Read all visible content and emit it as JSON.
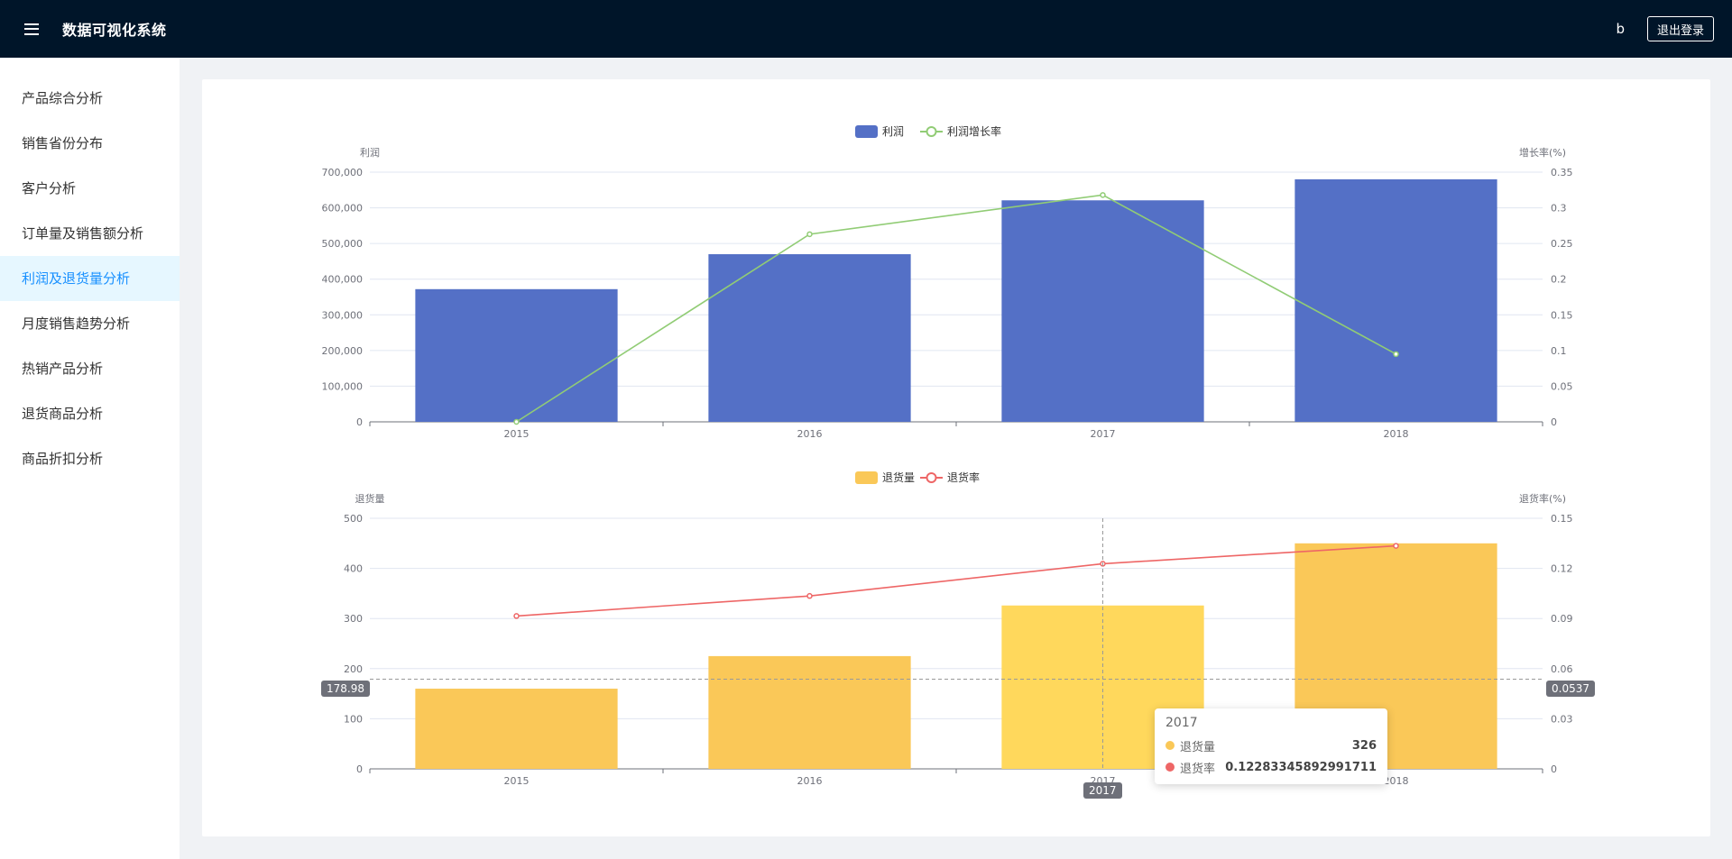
{
  "header": {
    "title": "数据可视化系统",
    "user_name": "b",
    "logout_label": "退出登录"
  },
  "sidebar": {
    "items": [
      {
        "label": "产品综合分析",
        "active": false
      },
      {
        "label": "销售省份分布",
        "active": false
      },
      {
        "label": "客户分析",
        "active": false
      },
      {
        "label": "订单量及销售额分析",
        "active": false
      },
      {
        "label": "利润及退货量分析",
        "active": true
      },
      {
        "label": "月度销售趋势分析",
        "active": false
      },
      {
        "label": "热销产品分析",
        "active": false
      },
      {
        "label": "退货商品分析",
        "active": false
      },
      {
        "label": "商品折扣分析",
        "active": false
      }
    ]
  },
  "colors": {
    "profit_bar": "#5470c6",
    "profit_growth_line": "#91cc75",
    "returns_bar": "#fac858",
    "returns_bar_highlight": "#ffd85c",
    "return_rate_line": "#ee6666"
  },
  "tooltip": {
    "title": "2017",
    "rows": [
      {
        "name": "退货量",
        "value": "326"
      },
      {
        "name": "退货率",
        "value": "0.12283345892991711"
      }
    ]
  },
  "axis_pointer": {
    "y_left_label": "178.98",
    "y_right_label": "0.0537",
    "x_label": "2017"
  },
  "chart_data": [
    {
      "type": "bar",
      "categories": [
        "2015",
        "2016",
        "2017",
        "2018"
      ],
      "series": [
        {
          "name": "利润",
          "type": "bar",
          "axis": "left",
          "values": [
            372000,
            470000,
            621000,
            680000
          ]
        },
        {
          "name": "利润增长率",
          "type": "line",
          "axis": "right",
          "values": [
            0,
            0.263,
            0.318,
            0.095
          ]
        }
      ],
      "legend": [
        "利润",
        "利润增长率"
      ],
      "ylabel": "利润",
      "ylabel_right": "增长率(%)",
      "ylim": [
        0,
        700000
      ],
      "ylim_right": [
        0,
        0.35
      ],
      "yticks": [
        "0",
        "100,000",
        "200,000",
        "300,000",
        "400,000",
        "500,000",
        "600,000",
        "700,000"
      ],
      "yticks_right": [
        "0",
        "0.05",
        "0.1",
        "0.15",
        "0.2",
        "0.25",
        "0.3",
        "0.35"
      ]
    },
    {
      "type": "bar",
      "categories": [
        "2015",
        "2016",
        "2017",
        "2018"
      ],
      "series": [
        {
          "name": "退货量",
          "type": "bar",
          "axis": "left",
          "values": [
            160,
            225,
            326,
            450
          ]
        },
        {
          "name": "退货率",
          "type": "line",
          "axis": "right",
          "values": [
            0.0915,
            0.1035,
            0.1228,
            0.1335
          ]
        }
      ],
      "legend": [
        "退货量",
        "退货率"
      ],
      "ylabel": "退货量",
      "ylabel_right": "退货率(%)",
      "ylim": [
        0,
        500
      ],
      "ylim_right": [
        0,
        0.15
      ],
      "yticks": [
        "0",
        "100",
        "200",
        "300",
        "400",
        "500"
      ],
      "yticks_right": [
        "0",
        "0.03",
        "0.06",
        "0.09",
        "0.12",
        "0.15"
      ]
    }
  ]
}
